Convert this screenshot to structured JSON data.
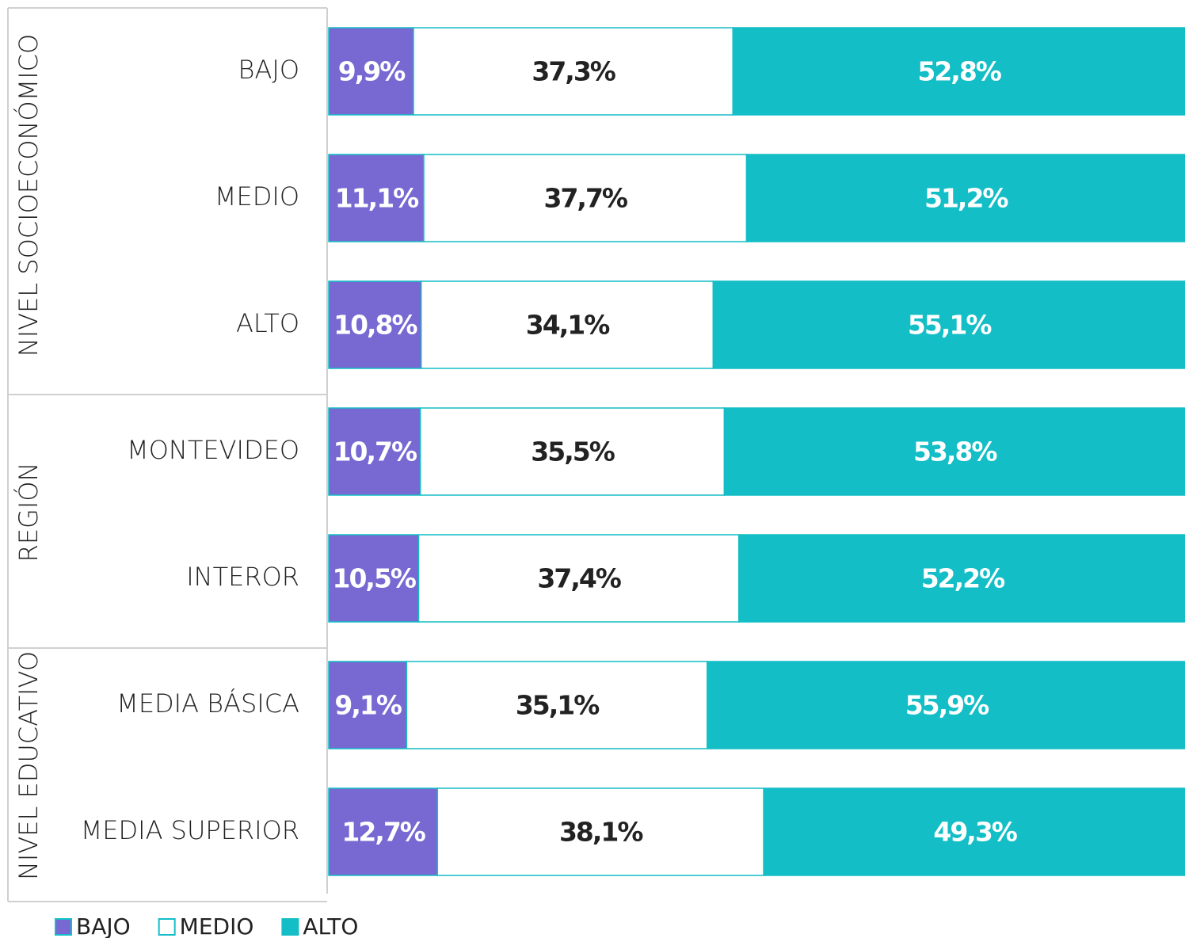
{
  "chart_data": {
    "type": "bar",
    "orientation": "horizontal",
    "stacked": true,
    "groups": [
      {
        "name": "NIVEL SOCIOECONÓMICO",
        "categories": [
          "BAJO",
          "MEDIO",
          "ALTO"
        ]
      },
      {
        "name": "REGIÓN",
        "categories": [
          "MONTEVIDEO",
          "INTEROR"
        ]
      },
      {
        "name": "NIVEL EDUCATIVO",
        "categories": [
          "MEDIA BÁSICA",
          "MEDIA SUPERIOR"
        ]
      }
    ],
    "series": [
      {
        "name": "BAJO",
        "color": "#7768d2",
        "label_color": "#ffffff",
        "values": [
          9.9,
          11.1,
          10.8,
          10.7,
          10.5,
          9.1,
          12.7
        ],
        "value_labels": [
          "9,9%",
          "11,1%",
          "10,8%",
          "10,7%",
          "10,5%",
          "9,1%",
          "12,7%"
        ]
      },
      {
        "name": "MEDIO",
        "color": "#ffffff",
        "label_color": "#222222",
        "values": [
          37.3,
          37.7,
          34.1,
          35.5,
          37.4,
          35.1,
          38.1
        ],
        "value_labels": [
          "37,3%",
          "37,7%",
          "34,1%",
          "35,5%",
          "37,4%",
          "35,1%",
          "38,1%"
        ]
      },
      {
        "name": "ALTO",
        "color": "#13bec6",
        "label_color": "#ffffff",
        "values": [
          52.8,
          51.2,
          55.1,
          53.8,
          52.2,
          55.9,
          49.3
        ],
        "value_labels": [
          "52,8%",
          "51,2%",
          "55,1%",
          "53,8%",
          "52,2%",
          "55,9%",
          "49,3%"
        ]
      }
    ],
    "xlim": [
      0,
      100
    ],
    "legend": "bottom-left"
  }
}
